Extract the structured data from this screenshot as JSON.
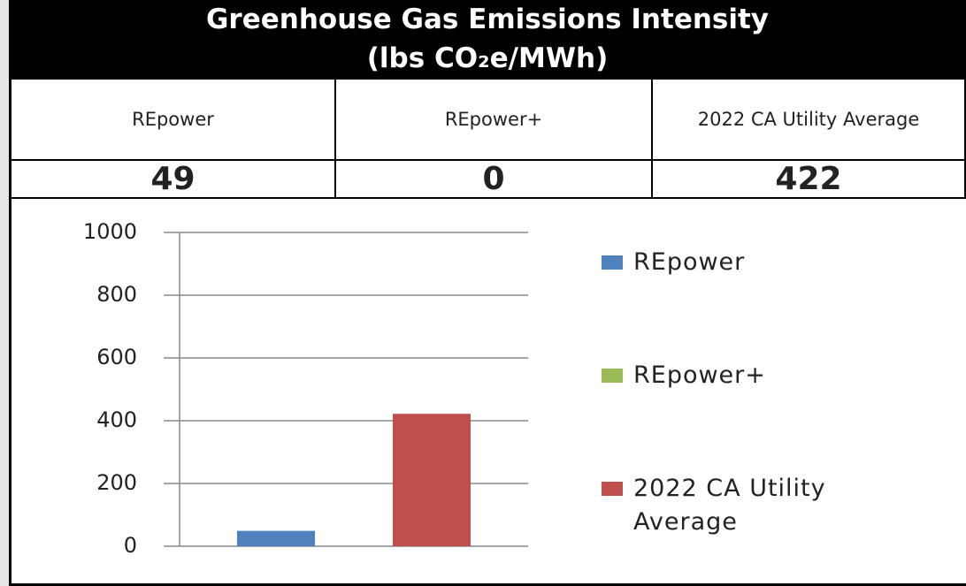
{
  "title": "Greenhouse Gas Emissions Intensity",
  "subtitle": "(lbs CO₂e/MWh)",
  "table": {
    "header": [
      "REpower",
      "REpower+",
      "2022 CA Utility Average"
    ],
    "rows": [
      [
        49,
        0,
        422
      ]
    ]
  },
  "chart_data": {
    "type": "bar",
    "series": [
      {
        "name": "REpower",
        "color": "#4f81bd",
        "values": [
          49
        ]
      },
      {
        "name": "REpower+",
        "color": "#9bbb59",
        "values": [
          0
        ]
      },
      {
        "name": "2022 CA Utility Average",
        "color": "#c0504d",
        "values": [
          422
        ]
      }
    ],
    "ylim": [
      0,
      1000
    ],
    "yticks": [
      0,
      200,
      400,
      600,
      800,
      1000
    ],
    "grid": true,
    "legend": "right"
  }
}
